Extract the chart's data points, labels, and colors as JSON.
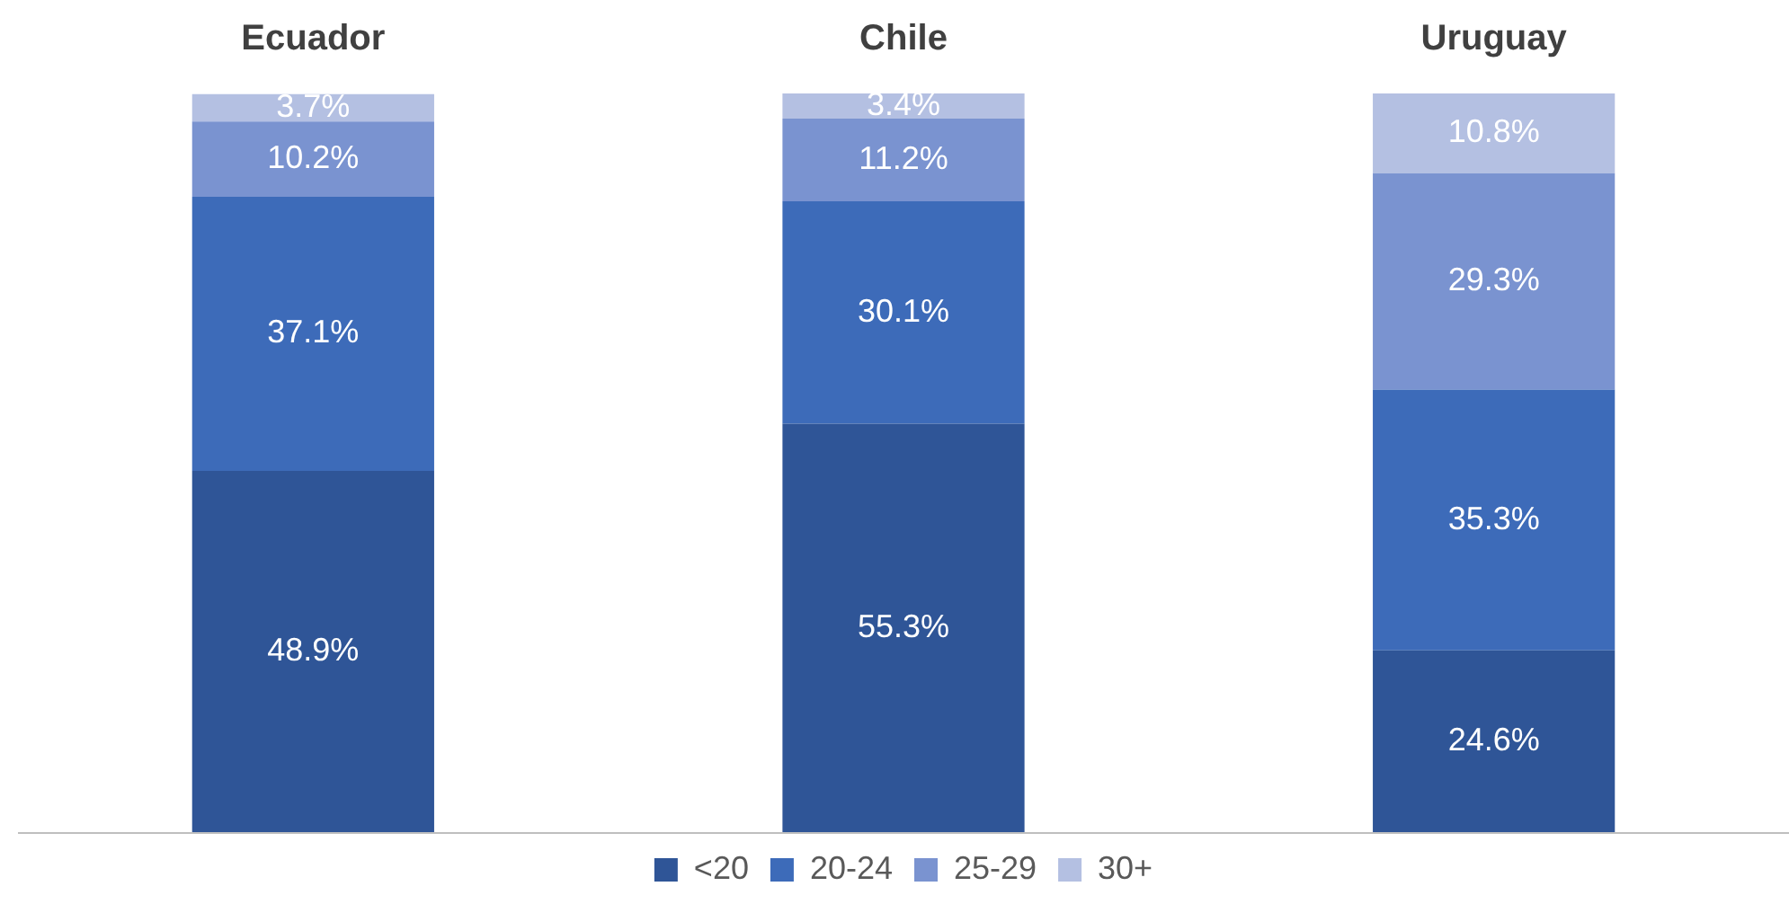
{
  "chart_data": {
    "type": "bar",
    "stacked": true,
    "legend": "bottom",
    "categories": [
      "Ecuador",
      "Chile",
      "Uruguay"
    ],
    "series": [
      {
        "name": "<20",
        "color": "#2f5597",
        "values": [
          48.9,
          55.3,
          24.6
        ],
        "value_labels": [
          "48.9%",
          "55.3%",
          "24.6%"
        ]
      },
      {
        "name": "20-24",
        "color": "#3d6bb9",
        "values": [
          37.1,
          30.1,
          35.3
        ],
        "value_labels": [
          "37.1%",
          "30.1%",
          "35.3%"
        ]
      },
      {
        "name": "25-29",
        "color": "#7a93d0",
        "values": [
          10.2,
          11.2,
          29.3
        ],
        "value_labels": [
          "10.2%",
          "11.2%",
          "29.3%"
        ]
      },
      {
        "name": "30+",
        "color": "#b4c0e2",
        "values": [
          3.7,
          3.4,
          10.8
        ],
        "value_labels": [
          "3.7%",
          "3.4%",
          "10.8%"
        ]
      }
    ]
  }
}
